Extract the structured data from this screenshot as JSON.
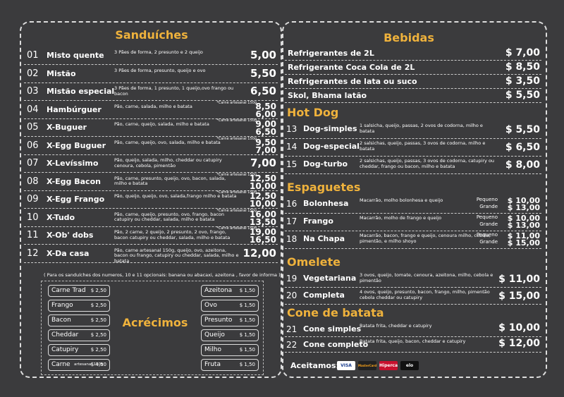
{
  "left": {
    "title": "Sanduíches",
    "items": [
      {
        "number": "01",
        "name": "Misto quente",
        "desc": "3 Pães de forma, 2 presunto e 2 queijo",
        "prices": [
          "5,00"
        ]
      },
      {
        "number": "02",
        "name": "Mistão",
        "desc": "3 Pães de forma, presunto, queijo e ovo",
        "prices": [
          "5,50"
        ]
      },
      {
        "number": "03",
        "name": "Mistão especial",
        "desc": "3 Pães de forma, 1 presunto, 1 queijo,ovo frango ou bacon",
        "prices": [
          "6,50"
        ]
      },
      {
        "number": "04",
        "name": "Hambúrguer",
        "desc": "Pão, carne, salada, milho e batata",
        "note": "*Carne artesanal 150g",
        "prices": [
          "8,50",
          "6,00"
        ]
      },
      {
        "number": "05",
        "name": "X-Buguer",
        "desc": "Pão, carne, queijo, salada, milho e batata",
        "note": "*Carne artesanal 150g",
        "prices": [
          "9,00",
          "6,50"
        ]
      },
      {
        "number": "06",
        "name": "X-Egg Buguer",
        "desc": "Pão, carne, queijo, ovo, salada, milho e batata",
        "note": "*Carne artesanal 150g",
        "prices": [
          "9,50",
          "7,00"
        ]
      },
      {
        "number": "07",
        "name": "X-Levíssimo",
        "desc": "Pão, queijo, salada, milho, cheddar ou catupiry cenoura, cebola, pimentão",
        "prices": [
          "7,00"
        ]
      },
      {
        "number": "08",
        "name": "X-Egg Bacon",
        "desc": "Pão, carne, presunto, queijo, ovo, bacon, salada, milho e batata",
        "note": "*Carne artesanal 150g",
        "prices": [
          "12,50",
          "10,00"
        ]
      },
      {
        "number": "09",
        "name": "X-Egg Frango",
        "desc": "Pão, queijo, queijo, ovo, salada,frango milho e batata",
        "note": "*Carne artesanal 150g",
        "prices": [
          "12,50",
          "10,00"
        ]
      },
      {
        "number": "10",
        "name": "X-Tudo",
        "desc": "Pão, carne, queijo, presunto, ovo, frango, bacon catupiry ou cheddar, salada, milho e batata",
        "note": "*Carne artesanal 150g",
        "prices": [
          "16,00",
          "13,50"
        ]
      },
      {
        "number": "11",
        "name": "X-Ob' dobs",
        "desc": "Pão, 2 carne, 2 queijo, 2 presunto, 2 ovo, frango, bacon catupiry ou cheddar, salada, milho e batata",
        "note": "*Carne artesanal 150g",
        "prices": [
          "19,00",
          "16,50"
        ]
      },
      {
        "number": "12",
        "name": "X-Da casa",
        "desc": "Pão, carne artesanal 150g, queijo, ovo, azeitona, bacon ou frango, catupiry ou cheddar, salada, milho e batata",
        "prices": [
          "12,00"
        ]
      }
    ],
    "footnote": "( Para os sanduíches dos numeros, 10 e 11 opcionais: banana ou abacaxi, azeitona , favor de informa )",
    "extras": {
      "title": "Acrécimos",
      "left": [
        {
          "name": "Carne Trad",
          "price": "$ 2,50"
        },
        {
          "name": "Frango",
          "price": "$ 2,50"
        },
        {
          "name": "Bacon",
          "price": "$ 2,50"
        },
        {
          "name": "Cheddar",
          "price": "$ 2,50"
        },
        {
          "name": "Catupiry",
          "price": "$ 2,50"
        },
        {
          "name": "Carne",
          "note": "artesanal 150g",
          "price": "$ 4,50"
        }
      ],
      "right": [
        {
          "name": "Azeitona",
          "price": "$ 1,50"
        },
        {
          "name": "Ovo",
          "price": "$ 1,50"
        },
        {
          "name": "Presunto",
          "price": "$ 1,50"
        },
        {
          "name": "Queijo",
          "price": "$ 1,50"
        },
        {
          "name": "Milho",
          "price": "$ 1,50"
        },
        {
          "name": "Fruta",
          "price": "$ 1,50"
        }
      ]
    }
  },
  "right": {
    "sections": [
      {
        "title": "Bebidas",
        "items": [
          {
            "name": "Refrigerantes de 2L",
            "price": "$ 7,00"
          },
          {
            "name": "Refrigerante Coca Cola de 2L",
            "price": "$ 8,50"
          },
          {
            "name": "Refrigerantes de lata ou suco",
            "price": "$ 3,50"
          },
          {
            "name": "Skol, Bhama latão",
            "price": "$ 5,50"
          }
        ]
      },
      {
        "title": "Hot Dog",
        "items": [
          {
            "number": "13",
            "name": "Dog-simples",
            "desc": "1 salsicha, queijo, passas, 2 ovos de codorna, milho e batata",
            "price": "$ 5,50"
          },
          {
            "number": "14",
            "name": "Dog-especial",
            "desc": "2 salsichas, queijo, passas, 3 ovos de codorna, milho e batata",
            "price": "$ 6,50"
          },
          {
            "number": "15",
            "name": "Dog-turbo",
            "desc": "2 salsichas, queijo, passas, 3 ovos de codorna, catupiry ou cheddar, frango ou  bacon, milho e batata",
            "price": "$ 8,00"
          }
        ]
      },
      {
        "title": "Espaguetes",
        "items": [
          {
            "number": "16",
            "name": "Bolonhesa",
            "desc": "Macarrão, molho bolonhesa e queijo",
            "sizes": [
              {
                "label": "Pequeno",
                "price": "$ 10,00"
              },
              {
                "label": "Grande",
                "price": "$ 13,00"
              }
            ]
          },
          {
            "number": "17",
            "name": "Frango",
            "desc": "Macarrão, molho de frango e queijo",
            "sizes": [
              {
                "label": "Pequeno",
                "price": "$ 10,00"
              },
              {
                "label": "Grande",
                "price": "$ 13,00"
              }
            ]
          },
          {
            "number": "18",
            "name": "Na Chapa",
            "desc": "Macarrão, bacon, frango e queijo, cenoura milho, cebola, pimentão, e milho shoyo",
            "sizes": [
              {
                "label": "Pequeno",
                "price": "$ 11,00"
              },
              {
                "label": "Grande",
                "price": "$ 15,00"
              }
            ]
          }
        ]
      },
      {
        "title": "Omelete",
        "items": [
          {
            "number": "19",
            "name": "Vegetariana",
            "desc": "3 ovos, queijo, tomate, cenoura, azeitona, milho, cebola e pimentão",
            "price": "$ 11,00"
          },
          {
            "number": "20",
            "name": "Completa",
            "desc": "4 ovos, queijo, presunto, bacon, frango, milho, pimentão cebola cheddar ou catupiry",
            "price": "$ 15,00"
          }
        ]
      },
      {
        "title": "Cone de batata",
        "items": [
          {
            "number": "21",
            "name": "Cone simples",
            "desc": "Batata frita, cheddar e catupiry",
            "price": "$ 10,00"
          },
          {
            "number": "22",
            "name": "Cone completo",
            "desc": "Batata frita, queijo, bacon, cheddar e catupiry",
            "price": "$ 12,00"
          }
        ]
      }
    ],
    "payment": {
      "label": "Aceitamos:",
      "cards": [
        "VISA",
        "MasterCard",
        "Hipercard",
        "elo"
      ]
    }
  }
}
